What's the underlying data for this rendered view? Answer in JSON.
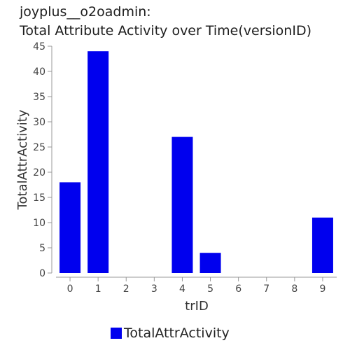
{
  "chart_data": {
    "type": "bar",
    "title": [
      "joyplus__o2oadmin:",
      "Total Attribute Activity over Time(versionID)"
    ],
    "xlabel": "trID",
    "ylabel": "TotalAttrActivity",
    "categories": [
      "0",
      "1",
      "2",
      "3",
      "4",
      "5",
      "6",
      "7",
      "8",
      "9"
    ],
    "series": [
      {
        "name": "TotalAttrActivity",
        "values": [
          18,
          44,
          0,
          0,
          27,
          4,
          0,
          0,
          0,
          11
        ]
      }
    ],
    "ylim": [
      0,
      45
    ],
    "yticks": [
      "0",
      "5",
      "10",
      "15",
      "20",
      "25",
      "30",
      "35",
      "40",
      "45"
    ],
    "legend_position": "bottom-center",
    "grid": false,
    "bar_color": "#0000ee"
  }
}
